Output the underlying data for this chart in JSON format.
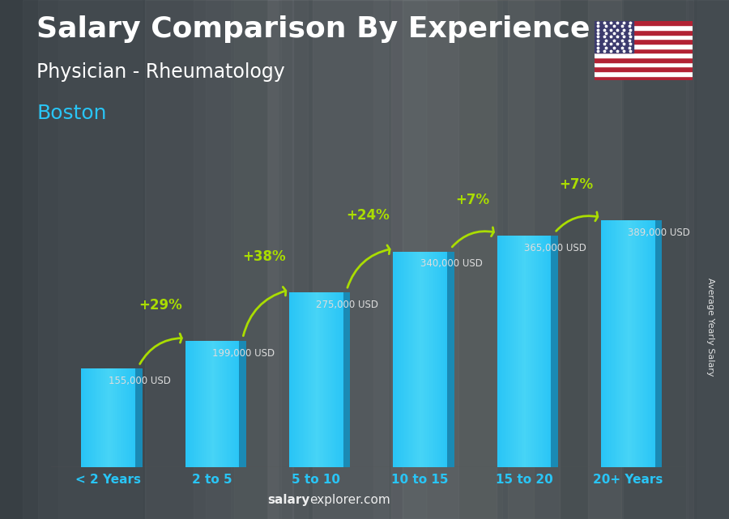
{
  "title": "Salary Comparison By Experience",
  "subtitle": "Physician - Rheumatology",
  "city": "Boston",
  "categories": [
    "< 2 Years",
    "2 to 5",
    "5 to 10",
    "10 to 15",
    "15 to 20",
    "20+ Years"
  ],
  "values": [
    155000,
    199000,
    275000,
    340000,
    365000,
    389000
  ],
  "labels": [
    "155,000 USD",
    "199,000 USD",
    "275,000 USD",
    "340,000 USD",
    "365,000 USD",
    "389,000 USD"
  ],
  "pct_changes": [
    "+29%",
    "+38%",
    "+24%",
    "+7%",
    "+7%"
  ],
  "bar_color_main": "#29c5f6",
  "bar_color_right": "#1a8ab5",
  "bar_color_top": "#55d8f8",
  "bg_color": "#3a3f47",
  "text_color_title": "#ffffff",
  "text_color_subtitle": "#ffffff",
  "city_color": "#29c5f6",
  "pct_color": "#aadd00",
  "label_color": "#dddddd",
  "xlabel_color": "#29c5f6",
  "watermark_salary": "salary",
  "watermark_rest": "explorer.com",
  "ylabel": "Average Yearly Salary",
  "ymax": 450000,
  "title_fontsize": 26,
  "subtitle_fontsize": 17,
  "city_fontsize": 18,
  "bar_width": 0.52,
  "side_ratio": 0.13
}
